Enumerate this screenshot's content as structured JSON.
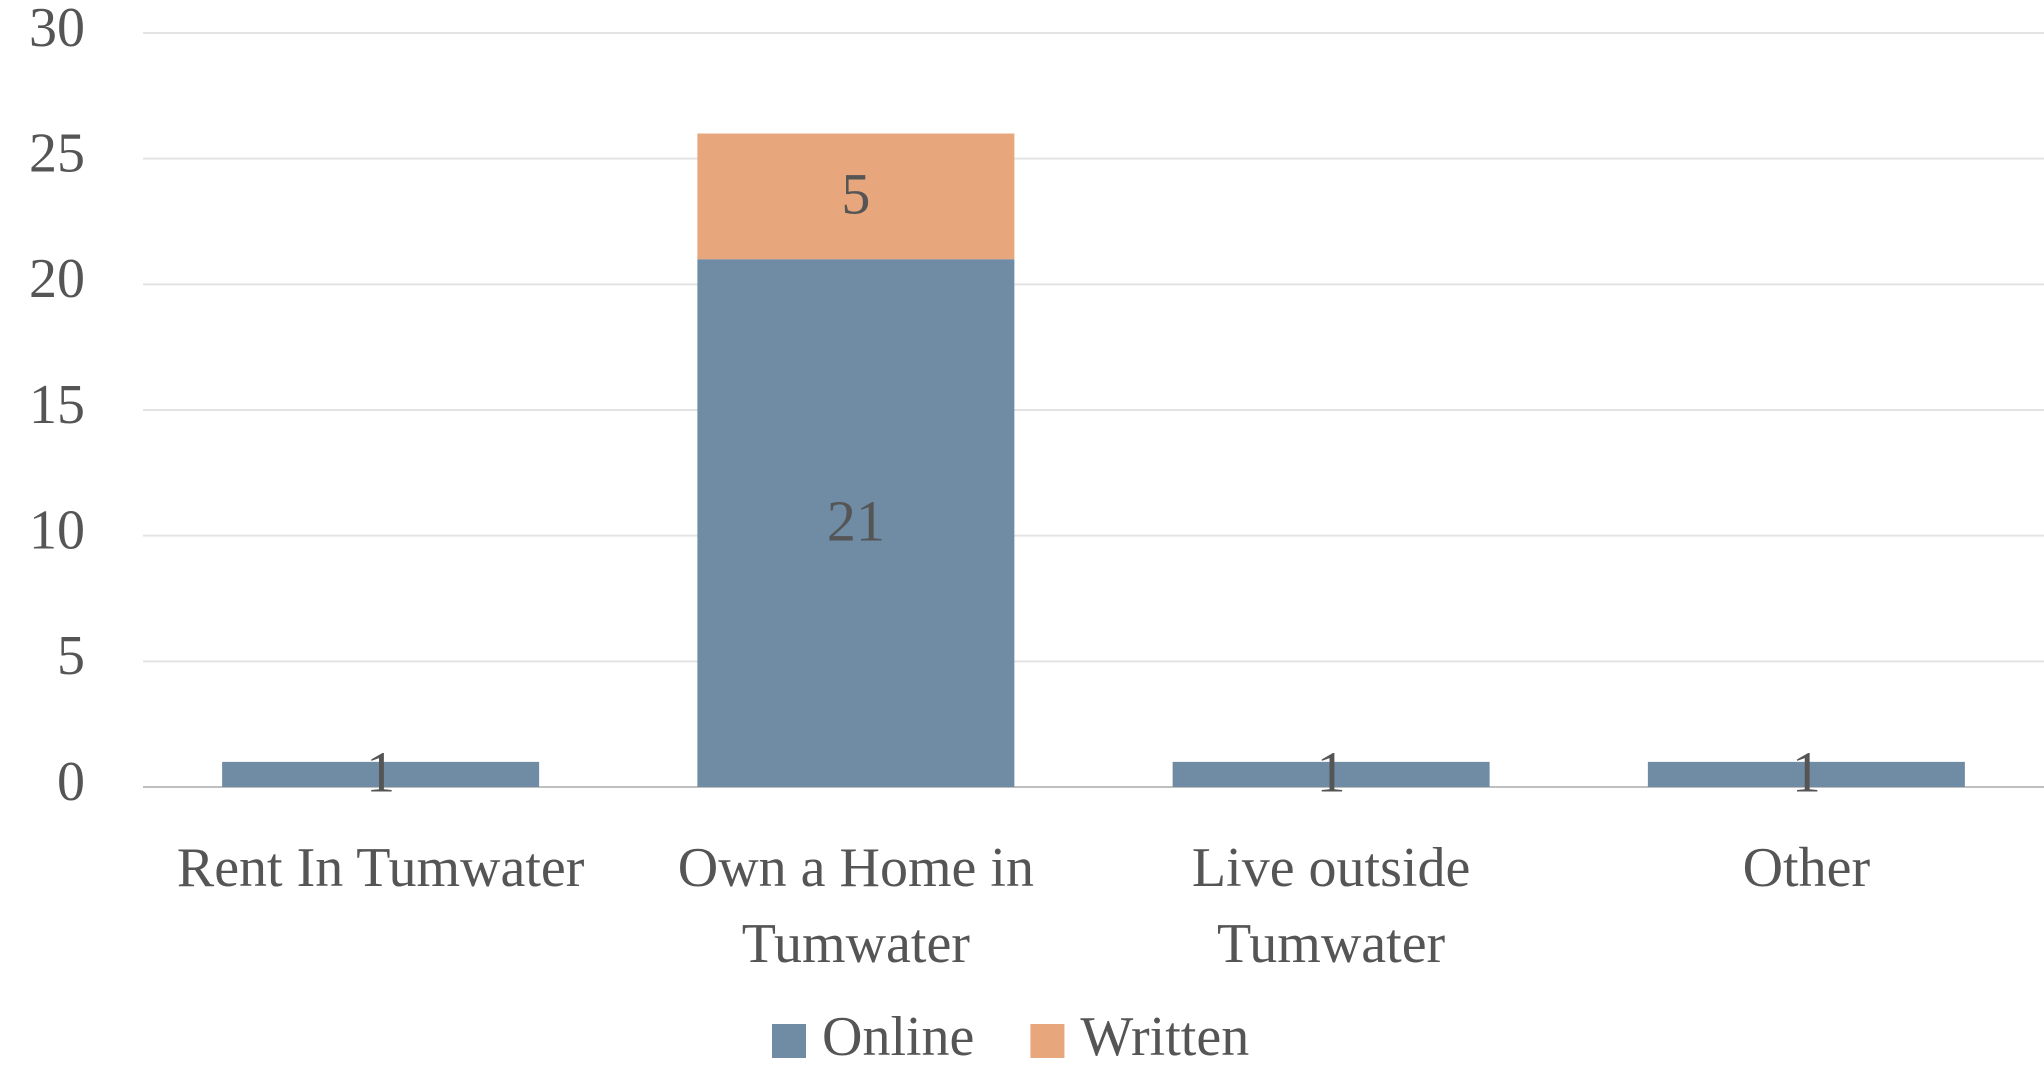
{
  "chart_data": {
    "type": "stacked_bar",
    "categories": [
      "Rent In Tumwater",
      "Own a Home in Tumwater",
      "Live outside Tumwater",
      "Other"
    ],
    "series": [
      {
        "name": "Online",
        "color": "#6f8ca4",
        "values": [
          1,
          21,
          1,
          1
        ]
      },
      {
        "name": "Written",
        "color": "#e8a67c",
        "values": [
          null,
          5,
          null,
          null
        ]
      }
    ],
    "ylim": [
      0,
      30
    ],
    "yticks": [
      0,
      5,
      10,
      15,
      20,
      25,
      30
    ],
    "grid": true,
    "legend": "bottom"
  }
}
